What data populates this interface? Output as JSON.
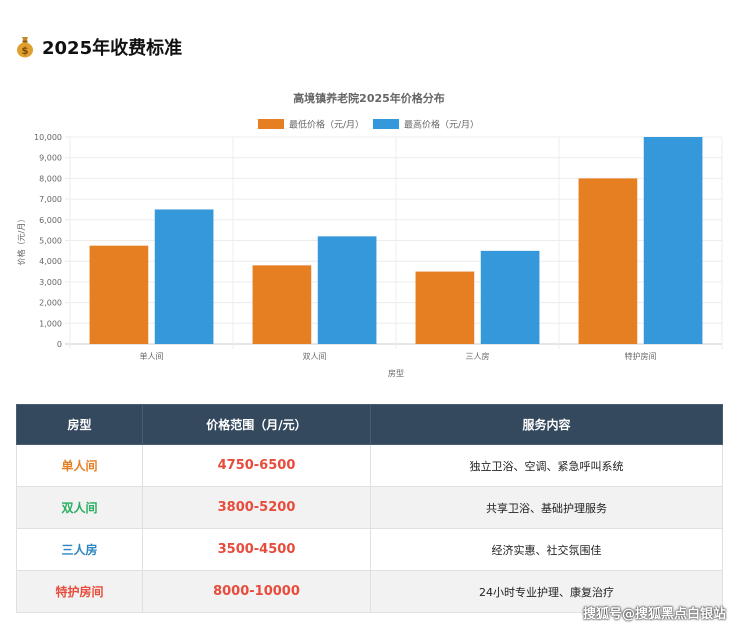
{
  "header": {
    "icon": "money-bag-icon",
    "title": "2025年收费标准"
  },
  "chart_data": {
    "type": "bar",
    "title": "高境镇养老院2025年价格分布",
    "categories": [
      "单人间",
      "双人间",
      "三人房",
      "特护房间"
    ],
    "series": [
      {
        "name": "最低价格（元/月）",
        "values": [
          4750,
          3800,
          3500,
          8000
        ],
        "color": "#e67e22"
      },
      {
        "name": "最高价格（元/月）",
        "values": [
          6500,
          5200,
          4500,
          10000
        ],
        "color": "#3498db"
      }
    ],
    "xlabel": "房型",
    "ylabel": "价格（元/月）",
    "ylim": [
      0,
      10000
    ],
    "yticks": [
      "0",
      "1,000",
      "2,000",
      "3,000",
      "4,000",
      "5,000",
      "6,000",
      "7,000",
      "8,000",
      "9,000",
      "10,000"
    ],
    "grid": true,
    "legend": "top-center"
  },
  "table": {
    "headers": [
      "房型",
      "价格范围（月/元）",
      "服务内容"
    ],
    "rows": [
      {
        "type": "单人间",
        "type_color": "#e67e22",
        "price": "4750-6500",
        "service": "独立卫浴、空调、紧急呼叫系统"
      },
      {
        "type": "双人间",
        "type_color": "#27ae60",
        "price": "3800-5200",
        "service": "共享卫浴、基础护理服务"
      },
      {
        "type": "三人房",
        "type_color": "#2e86c1",
        "price": "3500-4500",
        "service": "经济实惠、社交氛围佳"
      },
      {
        "type": "特护房间",
        "type_color": "#e74c3c",
        "price": "8000-10000",
        "service": "24小时专业护理、康复治疗"
      }
    ]
  },
  "watermark": "搜狐号@搜狐黑点白银站"
}
